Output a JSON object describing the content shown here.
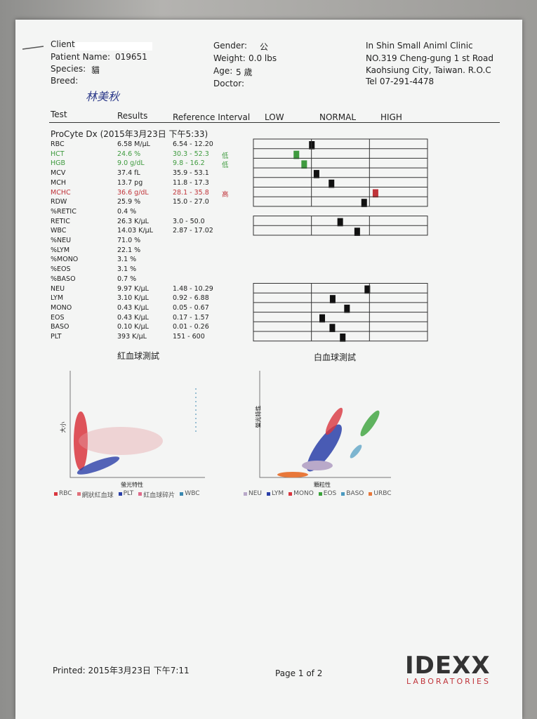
{
  "header": {
    "client_label": "Client:",
    "patient_label": "Patient Name:",
    "patient_name": "019651",
    "species_label": "Species:",
    "species": "貓",
    "breed_label": "Breed:",
    "handwritten": "林美秋",
    "gender_label": "Gender:",
    "gender": "公",
    "weight_label": "Weight:",
    "weight": "0.0 lbs",
    "age_label": "Age:",
    "age": "5 歲",
    "doctor_label": "Doctor:",
    "clinic": [
      "In Shin Small Animl Clinic",
      "NO.319 Cheng-gung 1 st Road",
      "Kaohsiung City, Taiwan. R.O.C",
      "Tel 07-291-4478"
    ]
  },
  "table": {
    "columns": [
      "Test",
      "Results",
      "Reference Interval",
      "LOW",
      "NORMAL",
      "HIGH"
    ],
    "section": "ProCyte Dx (2015年3月23日 下午5:33)",
    "rows": [
      {
        "test": "RBC",
        "result": "6.58 M/μL",
        "ref": "6.54 - 12.20"
      },
      {
        "test": "HCT",
        "result": "24.6 %",
        "ref": "30.3 - 52.3",
        "flag": "低",
        "color": "#3f9b3f"
      },
      {
        "test": "HGB",
        "result": "9.0 g/dL",
        "ref": "9.8 - 16.2",
        "flag": "低",
        "color": "#3f9b3f"
      },
      {
        "test": "MCV",
        "result": "37.4 fL",
        "ref": "35.9 - 53.1"
      },
      {
        "test": "MCH",
        "result": "13.7 pg",
        "ref": "11.8 - 17.3"
      },
      {
        "test": "MCHC",
        "result": "36.6 g/dL",
        "ref": "28.1 - 35.8",
        "flag": "高",
        "color": "#c0343a"
      },
      {
        "test": "RDW",
        "result": "25.9 %",
        "ref": "15.0 - 27.0"
      },
      {
        "test": "%RETIC",
        "result": "0.4 %"
      },
      {
        "test": "RETIC",
        "result": "26.3 K/μL",
        "ref": "3.0 - 50.0"
      },
      {
        "test": "WBC",
        "result": "14.03 K/μL",
        "ref": "2.87 - 17.02"
      },
      {
        "test": "%NEU",
        "result": "71.0 %"
      },
      {
        "test": "%LYM",
        "result": "22.1 %"
      },
      {
        "test": "%MONO",
        "result": "3.1 %"
      },
      {
        "test": "%EOS",
        "result": "3.1 %"
      },
      {
        "test": "%BASO",
        "result": "0.7 %"
      },
      {
        "test": "NEU",
        "result": "9.97 K/μL",
        "ref": "1.48 - 10.29"
      },
      {
        "test": "LYM",
        "result": "3.10 K/μL",
        "ref": "0.92 - 6.88"
      },
      {
        "test": "MONO",
        "result": "0.43 K/μL",
        "ref": "0.05 - 0.67"
      },
      {
        "test": "EOS",
        "result": "0.43 K/μL",
        "ref": "0.17 - 1.57"
      },
      {
        "test": "BASO",
        "result": "0.10 K/μL",
        "ref": "0.01 - 0.26"
      },
      {
        "test": "PLT",
        "result": "393 K/μL",
        "ref": "151 - 600"
      }
    ]
  },
  "plots": [
    {
      "title": "紅血球測試",
      "ylabel": "大小",
      "xlabel": "螢光特性",
      "legend": [
        {
          "name": "RBC",
          "color": "#d9363e"
        },
        {
          "name": "網狀紅血球",
          "color": "#e0707a"
        },
        {
          "name": "PLT",
          "color": "#2a3fa8"
        },
        {
          "name": "紅血球碎片",
          "color": "#e06a8a"
        },
        {
          "name": "WBC",
          "color": "#3a88b0"
        }
      ]
    },
    {
      "title": "白血球測試",
      "ylabel": "螢光特性",
      "xlabel": "顆粒性",
      "legend": [
        {
          "name": "NEU",
          "color": "#b9a9c9"
        },
        {
          "name": "LYM",
          "color": "#2a3fa8"
        },
        {
          "name": "MONO",
          "color": "#d9363e"
        },
        {
          "name": "EOS",
          "color": "#3aa33a"
        },
        {
          "name": "BASO",
          "color": "#4a9ac0"
        },
        {
          "name": "URBC",
          "color": "#e8783a"
        }
      ]
    }
  ],
  "footer": {
    "printed": "Printed: 2015年3月23日 下午7:11",
    "page": "Page 1 of 2",
    "logo": "IDEXX",
    "logo_sub": "LABORATORIES"
  }
}
